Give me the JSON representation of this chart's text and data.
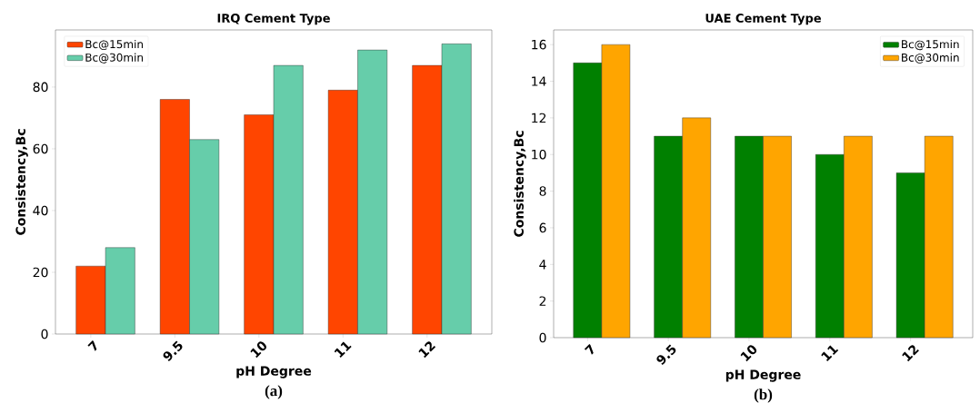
{
  "chart_data": [
    {
      "type": "bar",
      "title": "IRQ Cement Type",
      "xlabel": "pH Degree",
      "ylabel": "Consistency,Bc",
      "categories": [
        "7",
        "9.5",
        "10",
        "11",
        "12"
      ],
      "series": [
        {
          "name": "Bc@15min",
          "color": "#ff4500",
          "values": [
            22,
            76,
            71,
            79,
            87
          ]
        },
        {
          "name": "Bc@30min",
          "color": "#66cdaa",
          "values": [
            28,
            63,
            87,
            92,
            94
          ]
        }
      ],
      "ylim": [
        0,
        98.5
      ],
      "yticks": [
        0,
        20,
        40,
        60,
        80
      ],
      "legend": "top left",
      "annotations": [
        "(a)"
      ]
    },
    {
      "type": "bar",
      "title": "UAE Cement Type",
      "xlabel": "pH Degree",
      "ylabel": "Consistency,Bc",
      "categories": [
        "7",
        "9.5",
        "10",
        "11",
        "12"
      ],
      "series": [
        {
          "name": "Bc@15min",
          "color": "#008000",
          "values": [
            15,
            11,
            11,
            10,
            9
          ]
        },
        {
          "name": "Bc@30min",
          "color": "#ffa500",
          "values": [
            16,
            12,
            11,
            11,
            11
          ]
        }
      ],
      "ylim": [
        0,
        16.8
      ],
      "yticks": [
        0,
        2,
        4,
        6,
        8,
        10,
        12,
        14,
        16
      ],
      "legend": "top right",
      "annotations": [
        "(b)"
      ]
    }
  ]
}
